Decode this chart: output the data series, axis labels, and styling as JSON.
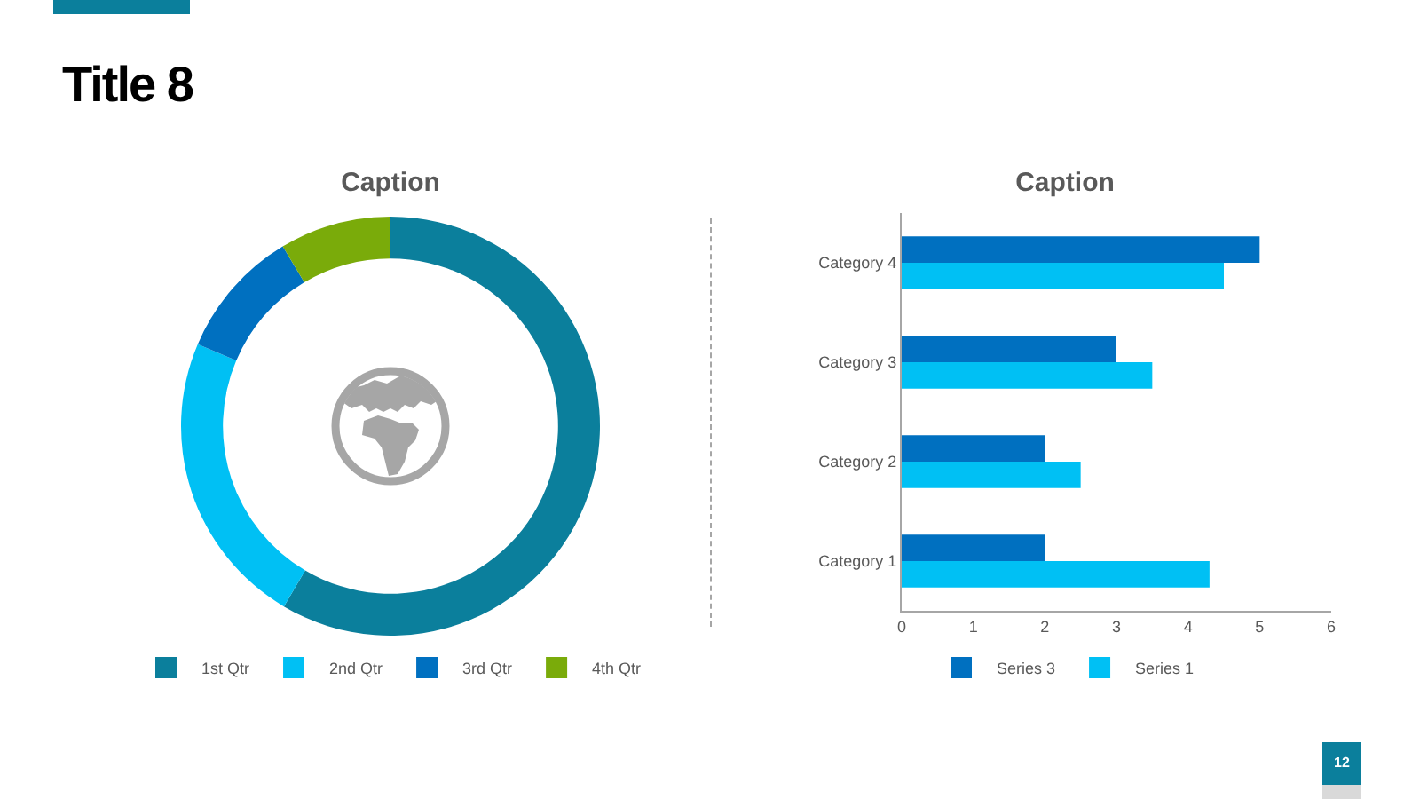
{
  "chart_data": [
    {
      "type": "other",
      "title": "Title 8",
      "annotations": [
        "12"
      ]
    },
    {
      "type": "donut",
      "title": "Caption",
      "categories": [
        "1st Qtr",
        "2nd Qtr",
        "3rd Qtr",
        "4th Qtr"
      ],
      "values": [
        58.5,
        22.9,
        10,
        8.6
      ],
      "colors": [
        "#0b7f9c",
        "#00c0f4",
        "#0070c0",
        "#7aab0a"
      ],
      "legend": "bottom"
    },
    {
      "type": "bar",
      "orientation": "horizontal",
      "title": "Caption",
      "categories": [
        "Category 4",
        "Category 3",
        "Category 2",
        "Category 1"
      ],
      "series": [
        {
          "name": "Series 3",
          "color": "#0070c0",
          "values": [
            5,
            3,
            2,
            2
          ]
        },
        {
          "name": "Series 1",
          "color": "#00c0f4",
          "values": [
            4.5,
            3.5,
            2.5,
            4.3
          ]
        }
      ],
      "xlim": [
        0,
        6
      ],
      "xticks": [
        0,
        1,
        2,
        3,
        4,
        5,
        6
      ],
      "legend": "bottom"
    }
  ]
}
